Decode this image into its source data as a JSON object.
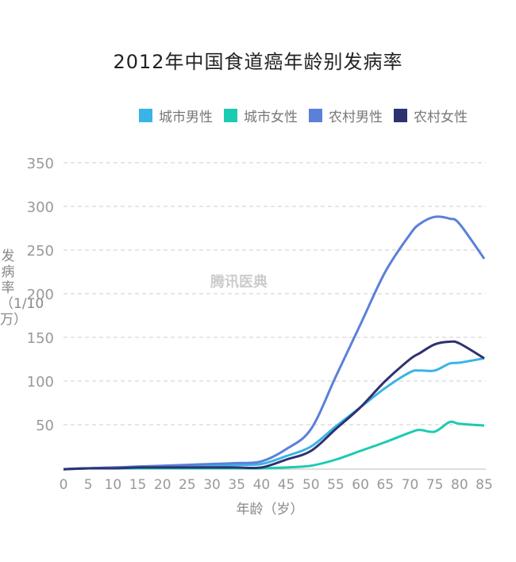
{
  "chart_data": {
    "type": "line",
    "title": "2012年中国食道癌年龄别发病率",
    "xlabel": "年龄（岁）",
    "ylabel": "发病率（1/10万）",
    "xlim": [
      0,
      85
    ],
    "ylim": [
      0,
      350
    ],
    "x_ticks": [
      0,
      5,
      10,
      15,
      20,
      25,
      30,
      35,
      40,
      45,
      50,
      55,
      60,
      65,
      70,
      75,
      80,
      85
    ],
    "y_ticks": [
      50,
      100,
      150,
      200,
      250,
      300,
      350
    ],
    "grid": true,
    "legend": "top-right",
    "watermark": "腾讯医典",
    "x": [
      0,
      5,
      10,
      15,
      20,
      25,
      30,
      35,
      40,
      45,
      50,
      55,
      60,
      65,
      70,
      72,
      75,
      78,
      80,
      85
    ],
    "series": [
      {
        "name": "城市男性",
        "color": "#3ab3e6",
        "values": [
          -1,
          0,
          1,
          1,
          2,
          2,
          3,
          4,
          5,
          14,
          25,
          48,
          70,
          92,
          110,
          112,
          112,
          120,
          121,
          126
        ]
      },
      {
        "name": "城市女性",
        "color": "#1ccbb2",
        "values": [
          -1,
          0,
          0,
          0,
          0,
          0,
          0,
          0,
          0,
          1,
          3,
          10,
          20,
          30,
          41,
          44,
          42,
          53,
          51,
          49
        ]
      },
      {
        "name": "农村男性",
        "color": "#5b80d9",
        "values": [
          -1,
          0,
          1,
          2,
          3,
          4,
          5,
          6,
          8,
          22,
          45,
          105,
          165,
          225,
          268,
          280,
          288,
          286,
          280,
          240
        ]
      },
      {
        "name": "农村女性",
        "color": "#2e3170",
        "values": [
          -1,
          0,
          0,
          1,
          1,
          1,
          1,
          1,
          1,
          10,
          20,
          45,
          70,
          100,
          125,
          132,
          142,
          145,
          143,
          126
        ]
      }
    ]
  }
}
